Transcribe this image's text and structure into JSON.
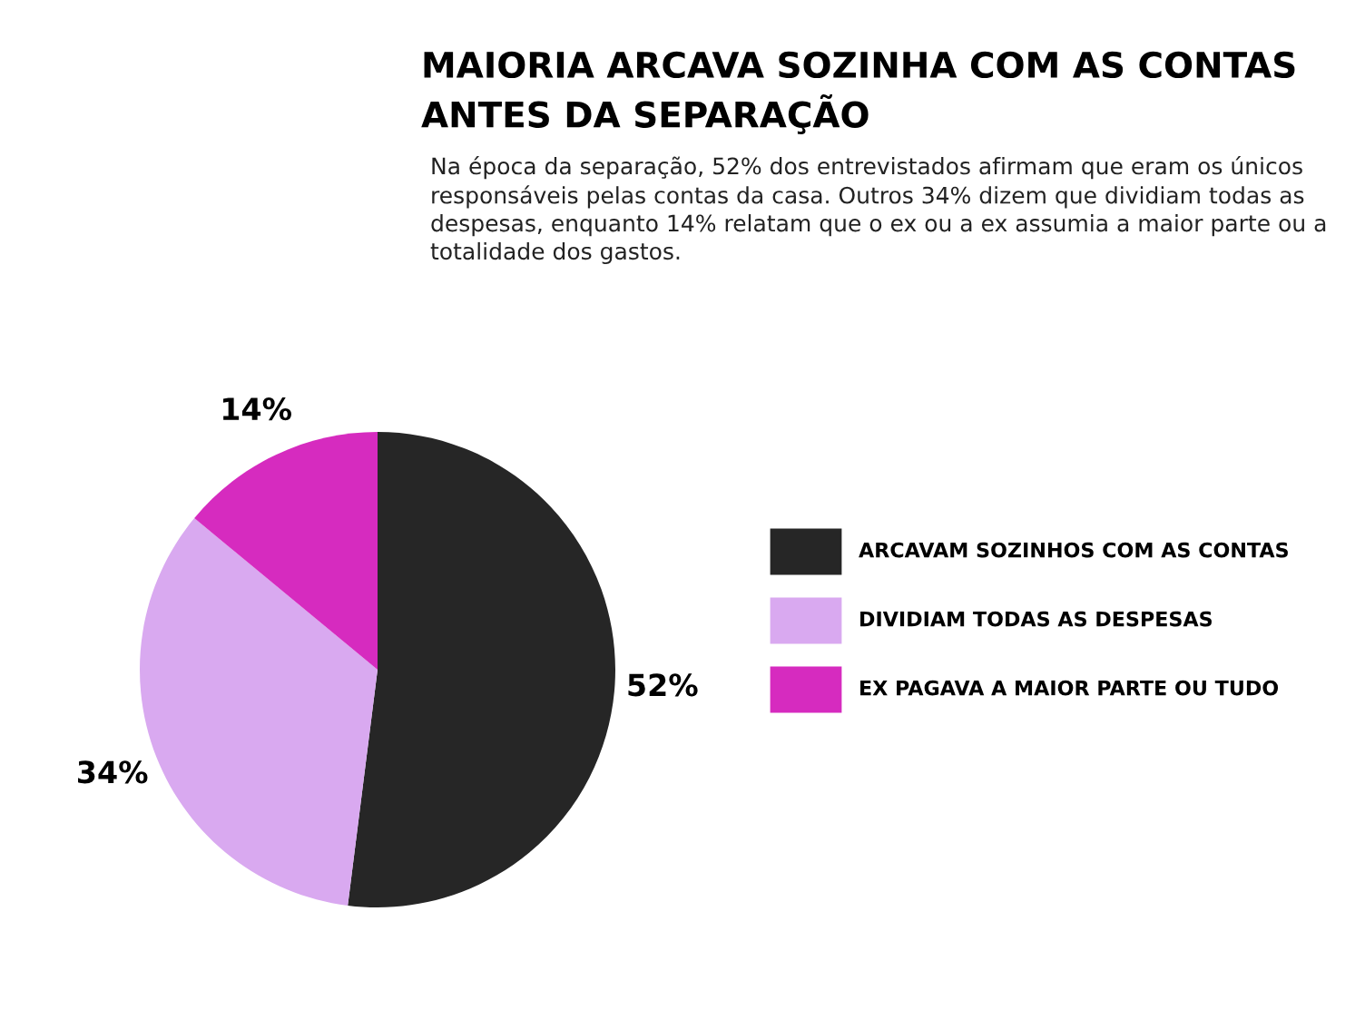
{
  "chart_data": {
    "type": "pie",
    "title": "MAIORIA ARCAVA SOZINHA COM AS CONTAS\nANTES DA SEPARAÇÃO",
    "subtitle": "Na época da separação, 52% dos entrevistados afirmam que eram os únicos\nresponsáveis pelas contas da casa. Outros 34% dizem que dividiam todas as\ndespesas, enquanto 14% relatam que o ex ou a ex assumia a maior parte ou a\ntotalidade dos gastos.",
    "categories": [
      "ARCAVAM SOZINHOS COM AS CONTAS",
      "DIVIDIAM TODAS AS DESPESAS",
      "EX PAGAVA A MAIOR PARTE OU TUDO"
    ],
    "values": [
      52,
      34,
      14
    ],
    "colors": [
      "#262626",
      "#d9a9f0",
      "#d62bbf"
    ],
    "value_labels": [
      "52%",
      "34%",
      "14%"
    ],
    "legend": "right"
  }
}
